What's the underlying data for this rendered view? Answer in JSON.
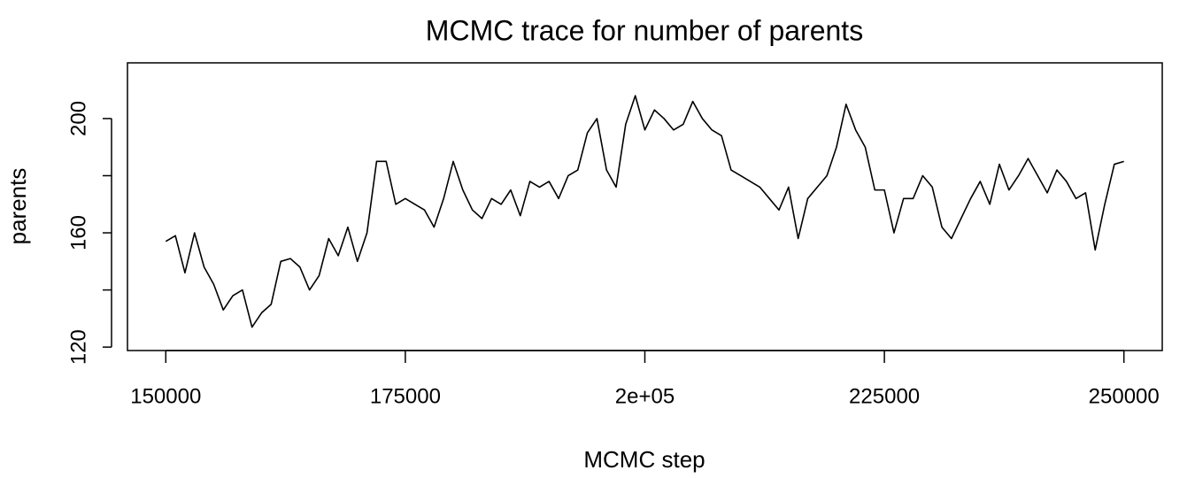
{
  "chart_data": {
    "type": "line",
    "title": "MCMC trace for number of parents",
    "x_label": "MCMC step",
    "y_label": "parents",
    "color": "#000000",
    "x": [
      150000,
      151000,
      152000,
      153000,
      154000,
      155000,
      156000,
      157000,
      158000,
      159000,
      160000,
      161000,
      162000,
      163000,
      164000,
      165000,
      166000,
      167000,
      168000,
      169000,
      170000,
      171000,
      172000,
      173000,
      174000,
      175000,
      176000,
      177000,
      178000,
      179000,
      180000,
      181000,
      182000,
      183000,
      184000,
      185000,
      186000,
      187000,
      188000,
      189000,
      190000,
      191000,
      192000,
      193000,
      194000,
      195000,
      196000,
      197000,
      198000,
      199000,
      200000,
      201000,
      202000,
      203000,
      204000,
      205000,
      206000,
      207000,
      208000,
      209000,
      210000,
      211000,
      212000,
      213000,
      214000,
      215000,
      216000,
      217000,
      218000,
      219000,
      220000,
      221000,
      222000,
      223000,
      224000,
      225000,
      226000,
      227000,
      228000,
      229000,
      230000,
      231000,
      232000,
      233000,
      234000,
      235000,
      236000,
      237000,
      238000,
      239000,
      240000,
      241000,
      242000,
      243000,
      244000,
      245000,
      246000,
      247000,
      248000,
      249000,
      250000
    ],
    "values": [
      157,
      159,
      146,
      160,
      148,
      142,
      133,
      138,
      140,
      127,
      132,
      135,
      150,
      151,
      148,
      140,
      145,
      158,
      152,
      162,
      150,
      160,
      185,
      185,
      170,
      172,
      170,
      168,
      162,
      172,
      185,
      175,
      168,
      165,
      172,
      170,
      175,
      166,
      178,
      176,
      178,
      172,
      180,
      182,
      195,
      200,
      182,
      176,
      198,
      208,
      196,
      203,
      200,
      196,
      198,
      206,
      200,
      196,
      194,
      182,
      180,
      178,
      176,
      172,
      168,
      176,
      158,
      172,
      176,
      180,
      190,
      205,
      196,
      190,
      175,
      175,
      160,
      172,
      172,
      180,
      176,
      162,
      158,
      165,
      172,
      178,
      170,
      184,
      175,
      180,
      186,
      180,
      174,
      182,
      178,
      172,
      174,
      154,
      170,
      184,
      185
    ],
    "xlim": [
      146000,
      254000
    ],
    "ylim": [
      118.8,
      219.5
    ],
    "xticks": [
      150000,
      175000,
      {
        "value": 200000,
        "label": "2e+05"
      },
      225000,
      250000
    ],
    "yticks": [
      120,
      160,
      200
    ],
    "yticks_minor": [
      140,
      180
    ]
  }
}
